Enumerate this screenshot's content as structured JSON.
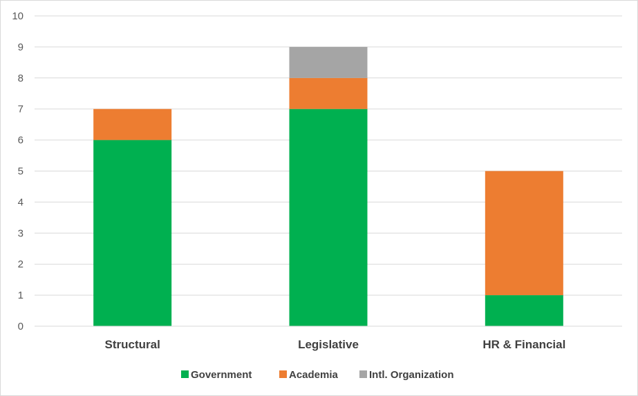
{
  "chart_data": {
    "type": "bar",
    "stacked": true,
    "categories": [
      "Structural",
      "Legislative",
      "HR & Financial"
    ],
    "series": [
      {
        "name": "Government",
        "values": [
          6,
          7,
          1
        ],
        "color": "#00b050"
      },
      {
        "name": "Academia",
        "values": [
          1,
          1,
          4
        ],
        "color": "#ed7d31"
      },
      {
        "name": "Intl. Organization",
        "values": [
          0,
          1,
          0
        ],
        "color": "#a5a5a5"
      }
    ],
    "ylim": [
      0,
      10
    ],
    "yticks": [
      0,
      1,
      2,
      3,
      4,
      5,
      6,
      7,
      8,
      9,
      10
    ],
    "grid": true,
    "legend_position": "bottom"
  }
}
